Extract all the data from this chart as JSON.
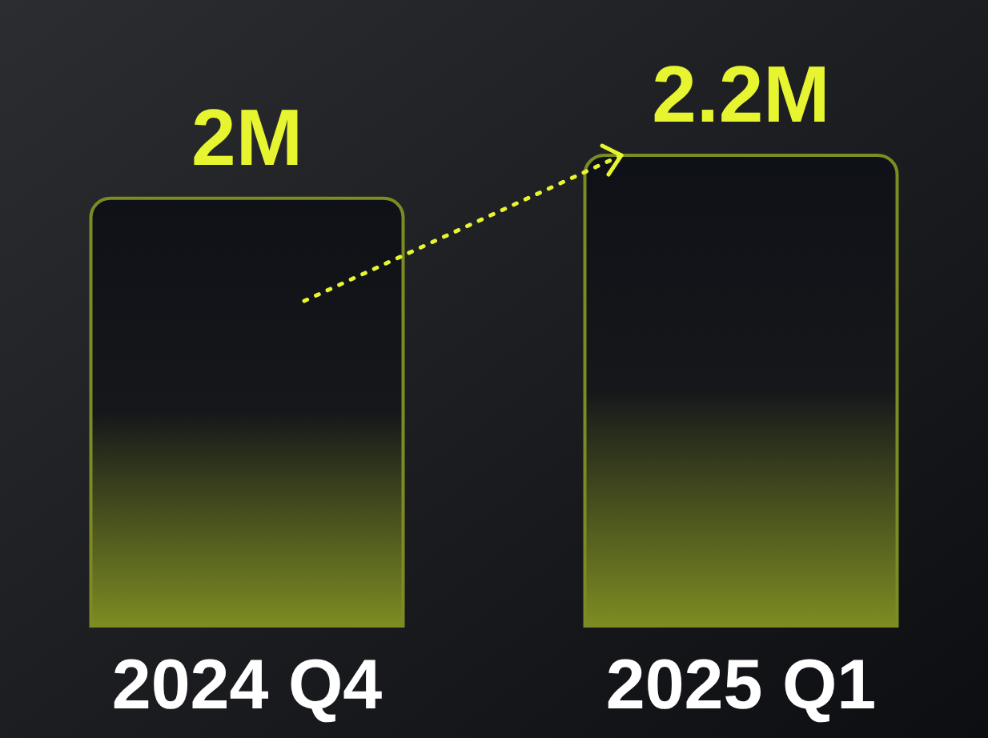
{
  "chart_data": {
    "type": "bar",
    "categories": [
      "2024 Q4",
      "2025 Q1"
    ],
    "values": [
      2000000,
      2200000
    ],
    "value_labels": [
      "2M",
      "2.2M"
    ],
    "color": "#7d8c22"
  }
}
